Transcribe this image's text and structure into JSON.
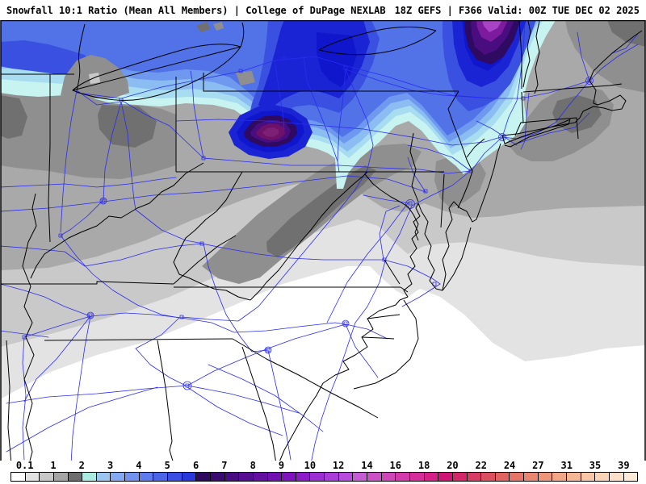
{
  "header": {
    "left": "Snowfall 10:1 Ratio (Mean All Members) | College of DuPage NEXLAB",
    "right": "18Z GEFS | F366 Valid: 00Z TUE DEC 02 2025"
  },
  "legend": {
    "labels": [
      "0.1",
      "1",
      "2",
      "3",
      "4",
      "5",
      "6",
      "7",
      "8",
      "9",
      "10",
      "12",
      "14",
      "16",
      "18",
      "20",
      "22",
      "24",
      "27",
      "31",
      "35",
      "39"
    ],
    "cell_colors": [
      "#ffffff",
      "#e1e1e1",
      "#c8c8c8",
      "#a5a5a5",
      "#6e6e6e",
      "#aaeae1",
      "#9cc6f0",
      "#86aaf2",
      "#7292f0",
      "#5f7cee",
      "#4b64e8",
      "#3a4ee2",
      "#2838da",
      "#2d0a60",
      "#3a0c72",
      "#480d82",
      "#550e92",
      "#630fa0",
      "#7110b0",
      "#7f13bc",
      "#8c1cc8",
      "#9c2ed2",
      "#aa3cda",
      "#b84ade",
      "#c55cd4",
      "#cb52c6",
      "#cf46b8",
      "#d23aaa",
      "#d52e9a",
      "#d42188",
      "#d01476",
      "#d2286a",
      "#d63c64",
      "#db5060",
      "#e0635f",
      "#e57566",
      "#e9866f",
      "#ee967a",
      "#f2a687",
      "#f5b696",
      "#f8c6a7",
      "#fbd4b8",
      "#fce0c9",
      "#fdebd9"
    ]
  },
  "map": {
    "background": "#ffffff",
    "road_color": "#2b2bf2",
    "boundary_color": "#000000",
    "level_colors": {
      "g01": "#e3e3e3",
      "g05": "#c9c9c9",
      "g1": "#a9a9a9",
      "g15": "#8f8f8f",
      "g2": "#707070",
      "c2": "#c7f4f0",
      "b25": "#a8dcf0",
      "b3": "#8cbdf2",
      "b35": "#6f99ee",
      "b4": "#5272e8",
      "b45": "#3a50e0",
      "b5": "#1b24d4",
      "b6": "#1016cc",
      "p60": "#2e0a60",
      "p70": "#490d80",
      "p80": "#7d1b9f",
      "p90": "#a843c6",
      "pm": "#6d1268",
      "pmi": "#7d1f74",
      "mi": "#8f8f8f",
      "mil": "#c9c9c9"
    }
  }
}
